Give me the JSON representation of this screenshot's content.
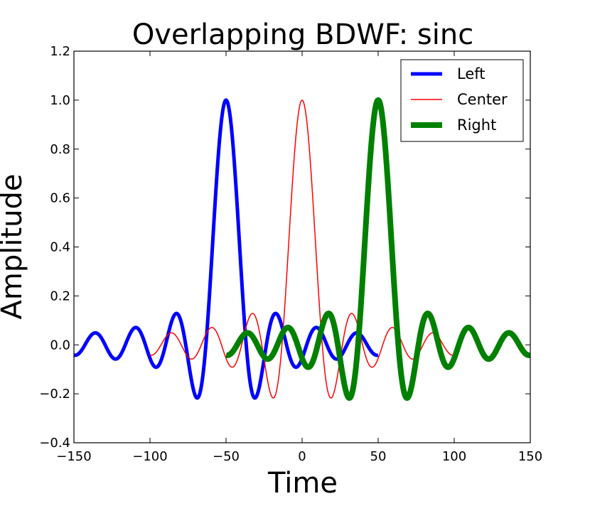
{
  "chart_data": {
    "type": "line",
    "title": "Overlapping BDWF: sinc",
    "xlabel": "Time",
    "ylabel": "Amplitude",
    "xlim": [
      -150,
      150
    ],
    "ylim": [
      -0.4,
      1.2
    ],
    "xticks": [
      -150,
      -100,
      -50,
      0,
      50,
      100,
      150
    ],
    "xtick_labels": [
      "−150",
      "−100",
      "−50",
      "0",
      "50",
      "100",
      "150"
    ],
    "yticks": [
      -0.4,
      -0.2,
      0.0,
      0.2,
      0.4,
      0.6,
      0.8,
      1.0,
      1.2
    ],
    "ytick_labels": [
      "−0.4",
      "−0.2",
      "0.0",
      "0.2",
      "0.4",
      "0.6",
      "0.8",
      "1.0",
      "1.2"
    ],
    "grid": false,
    "legend_position": "top-right",
    "function": "sinc",
    "series": [
      {
        "name": "Left",
        "color": "#0000ff",
        "linewidth": 5,
        "center": -50,
        "x_range": [
          -150,
          50
        ],
        "period": 26.5
      },
      {
        "name": "Center",
        "color": "#ff0000",
        "linewidth": 1.5,
        "center": 0,
        "x_range": [
          -100,
          100
        ],
        "period": 26.5
      },
      {
        "name": "Right",
        "color": "#008000",
        "linewidth": 8,
        "center": 50,
        "x_range": [
          -50,
          150
        ],
        "period": 26.5
      }
    ]
  }
}
